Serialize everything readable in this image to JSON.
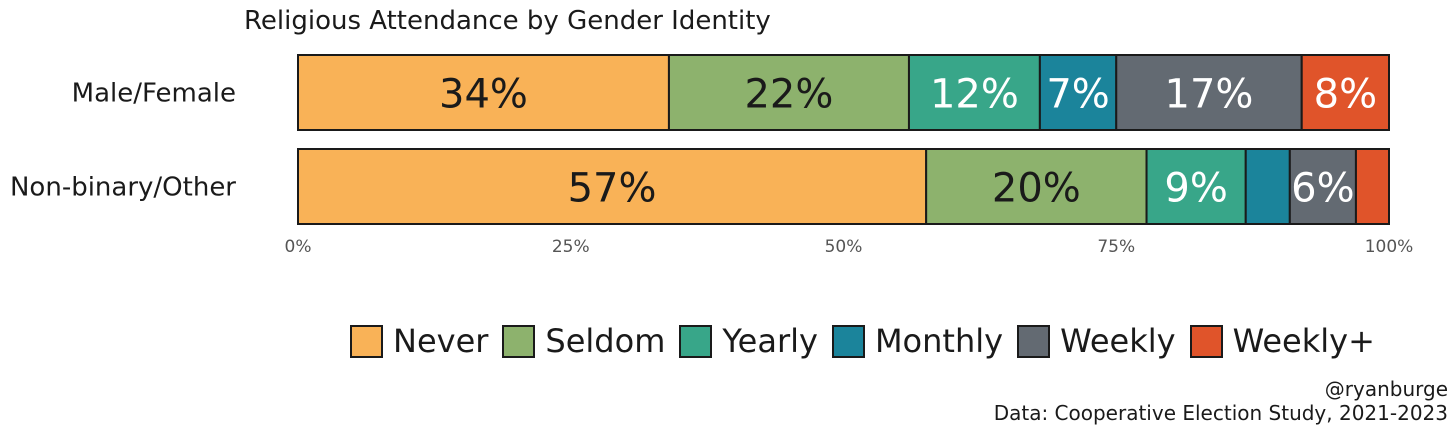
{
  "chart_data": {
    "type": "bar",
    "orientation": "horizontal",
    "stacked": true,
    "title": "Religious Attendance by Gender Identity",
    "categories": [
      "Male/Female",
      "Non-binary/Other"
    ],
    "series": [
      {
        "name": "Never",
        "color": "#F9B257",
        "values": [
          34,
          57
        ],
        "labels": [
          "34%",
          "57%"
        ],
        "label_color": "#1a1a1a"
      },
      {
        "name": "Seldom",
        "color": "#8DB26D",
        "values": [
          22,
          20
        ],
        "labels": [
          "22%",
          "20%"
        ],
        "label_color": "#1a1a1a"
      },
      {
        "name": "Yearly",
        "color": "#38A689",
        "values": [
          12,
          9
        ],
        "labels": [
          "12%",
          "9%"
        ],
        "label_color": "#ffffff"
      },
      {
        "name": "Monthly",
        "color": "#1B849B",
        "values": [
          7,
          4
        ],
        "labels": [
          "7%",
          ""
        ],
        "label_color": "#ffffff"
      },
      {
        "name": "Weekly",
        "color": "#636A72",
        "values": [
          17,
          6
        ],
        "labels": [
          "17%",
          "6%"
        ],
        "label_color": "#ffffff"
      },
      {
        "name": "Weekly+",
        "color": "#E0542A",
        "values": [
          8,
          3
        ],
        "labels": [
          "8%",
          ""
        ],
        "label_color": "#ffffff"
      }
    ],
    "xlim": [
      0,
      100
    ],
    "x_ticks": [
      0,
      25,
      50,
      75,
      100
    ],
    "x_tick_labels": [
      "0%",
      "25%",
      "50%",
      "75%",
      "100%"
    ],
    "grid": false,
    "legend_position": "bottom"
  },
  "credits": {
    "author": "@ryanburge",
    "source": "Data: Cooperative Election Study, 2021-2023"
  }
}
